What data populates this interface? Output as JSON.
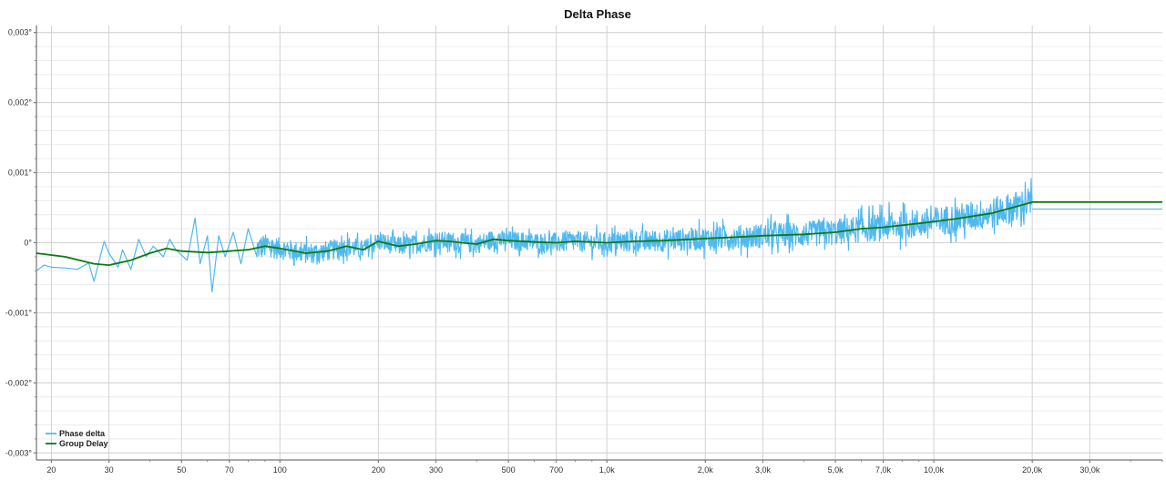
{
  "chart_data": {
    "type": "line",
    "title": "Delta Phase",
    "x_scale": "log",
    "xlim": [
      18,
      50000
    ],
    "ylim": [
      -0.0031,
      0.0031
    ],
    "grid": true,
    "legend_position": "bottom-left",
    "x_ticks": [
      {
        "value": 20,
        "label": "20"
      },
      {
        "value": 30,
        "label": "30"
      },
      {
        "value": 50,
        "label": "50"
      },
      {
        "value": 70,
        "label": "70"
      },
      {
        "value": 100,
        "label": "100"
      },
      {
        "value": 200,
        "label": "200"
      },
      {
        "value": 300,
        "label": "300"
      },
      {
        "value": 500,
        "label": "500"
      },
      {
        "value": 700,
        "label": "700"
      },
      {
        "value": 1000,
        "label": "1,0k"
      },
      {
        "value": 2000,
        "label": "2,0k"
      },
      {
        "value": 3000,
        "label": "3,0k"
      },
      {
        "value": 5000,
        "label": "5,0k"
      },
      {
        "value": 7000,
        "label": "7,0k"
      },
      {
        "value": 10000,
        "label": "10,0k"
      },
      {
        "value": 20000,
        "label": "20,0k"
      },
      {
        "value": 30000,
        "label": "30,0k"
      }
    ],
    "y_ticks": [
      {
        "value": 0.003,
        "label": "0,003°"
      },
      {
        "value": 0.002,
        "label": "0,002°"
      },
      {
        "value": 0.001,
        "label": "0,001°"
      },
      {
        "value": 0,
        "label": "0°"
      },
      {
        "value": -0.001,
        "label": "-0,001°"
      },
      {
        "value": -0.002,
        "label": "-0,002°"
      },
      {
        "value": -0.003,
        "label": "-0,003°"
      }
    ],
    "series": [
      {
        "name": "Phase delta",
        "color": "#4fb8f0",
        "noisy": true,
        "envelope_x": [
          18,
          25,
          30,
          40,
          60,
          100,
          200,
          500,
          1000,
          2000,
          5000,
          10000,
          20000
        ],
        "envelope_y": [
          0.0002,
          0.00025,
          0.0003,
          0.0003,
          0.00035,
          0.0002,
          0.00018,
          0.00018,
          0.0002,
          0.00022,
          0.00025,
          0.00028,
          0.0003
        ],
        "trace_points": [
          [
            18,
            -0.0004
          ],
          [
            19,
            -0.00032
          ],
          [
            20,
            -0.00035
          ],
          [
            22,
            -0.00036
          ],
          [
            24,
            -0.00038
          ],
          [
            26,
            -0.00029
          ],
          [
            27,
            -0.00055
          ],
          [
            29,
            2e-05
          ],
          [
            30,
            -0.00015
          ],
          [
            32,
            -0.00035
          ],
          [
            33,
            -0.0001
          ],
          [
            35,
            -0.00038
          ],
          [
            37,
            5e-05
          ],
          [
            39,
            -0.0002
          ],
          [
            41,
            -5e-05
          ],
          [
            44,
            -0.0002
          ],
          [
            46,
            5e-05
          ],
          [
            48,
            -0.0001
          ],
          [
            52,
            -0.00025
          ],
          [
            55,
            0.00035
          ],
          [
            57,
            -0.0003
          ],
          [
            60,
            0.0001
          ],
          [
            62,
            -0.0007
          ],
          [
            65,
            0.0001
          ],
          [
            68,
            -0.0002
          ],
          [
            72,
            0.00015
          ],
          [
            76,
            -0.0003
          ],
          [
            80,
            0.0002
          ],
          [
            85,
            -0.0002
          ]
        ],
        "x_end_plateau": [
          20000,
          50000
        ],
        "y_end_plateau": 0.00048
      },
      {
        "name": "Group Delay",
        "color": "#0e7a0e",
        "x": [
          18,
          22,
          27,
          30,
          35,
          40,
          45,
          50,
          60,
          70,
          80,
          90,
          100,
          120,
          140,
          160,
          180,
          200,
          230,
          260,
          300,
          330,
          360,
          400,
          450,
          500,
          600,
          700,
          800,
          1000,
          1200,
          1500,
          2000,
          2500,
          3000,
          4000,
          5000,
          6000,
          7000,
          8000,
          10000,
          12000,
          15000,
          18000,
          20000,
          50000
        ],
        "y": [
          -0.00015,
          -0.0002,
          -0.0003,
          -0.00032,
          -0.00025,
          -0.00015,
          -8e-05,
          -0.00012,
          -0.00014,
          -0.00012,
          -0.0001,
          -5e-05,
          -8e-05,
          -0.00015,
          -0.00012,
          -5e-05,
          -0.0001,
          2e-05,
          -5e-05,
          -2e-05,
          3e-05,
          2e-05,
          0.0,
          -2e-05,
          5e-05,
          3e-05,
          1e-05,
          0.0,
          2e-05,
          0.0,
          2e-05,
          3e-05,
          6e-05,
          8e-05,
          0.0001,
          0.00012,
          0.00015,
          0.0002,
          0.00022,
          0.00025,
          0.0003,
          0.00035,
          0.00042,
          0.00052,
          0.00058,
          0.00058
        ]
      }
    ]
  }
}
